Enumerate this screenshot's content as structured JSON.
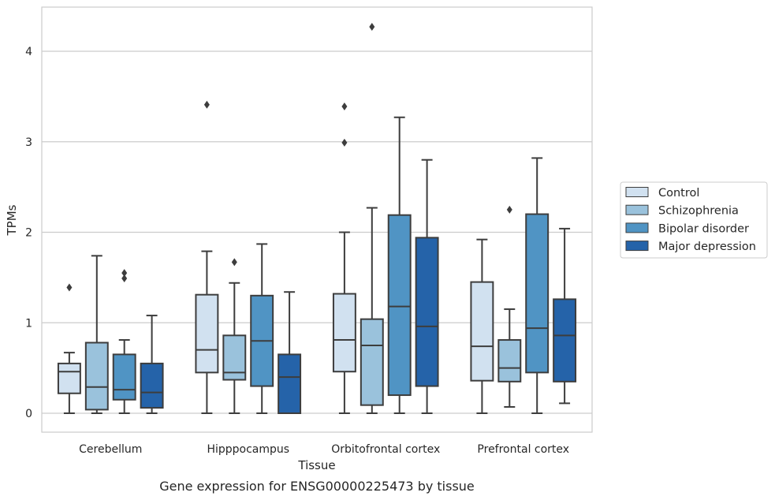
{
  "caption": "Gene expression for ENSG00000225473 by tissue",
  "chart_data": {
    "type": "box",
    "title": "",
    "xlabel": "Tissue",
    "ylabel": "TPMs",
    "ylim": [
      -0.2,
      4.5
    ],
    "yticks": [
      0,
      1,
      2,
      3,
      4
    ],
    "grid": "horizontal",
    "legend_position": "right",
    "categories": [
      "Cerebellum",
      "Hipppocampus",
      "Orbitofrontal cortex",
      "Prefrontal cortex"
    ],
    "series": [
      {
        "name": "Control",
        "color": "#d1e1f0",
        "boxes": [
          {
            "whisker_low": 0.0,
            "q1": 0.22,
            "median": 0.46,
            "q3": 0.55,
            "whisker_high": 0.67,
            "outliers": [
              1.39
            ]
          },
          {
            "whisker_low": 0.0,
            "q1": 0.45,
            "median": 0.7,
            "q3": 1.31,
            "whisker_high": 1.79,
            "outliers": [
              3.41
            ]
          },
          {
            "whisker_low": 0.0,
            "q1": 0.46,
            "median": 0.81,
            "q3": 1.32,
            "whisker_high": 2.0,
            "outliers": [
              2.99,
              3.39
            ]
          },
          {
            "whisker_low": 0.0,
            "q1": 0.36,
            "median": 0.74,
            "q3": 1.45,
            "whisker_high": 1.92,
            "outliers": []
          }
        ]
      },
      {
        "name": "Schizophrenia",
        "color": "#9ac2dc",
        "boxes": [
          {
            "whisker_low": 0.0,
            "q1": 0.04,
            "median": 0.29,
            "q3": 0.78,
            "whisker_high": 1.74,
            "outliers": []
          },
          {
            "whisker_low": 0.0,
            "q1": 0.37,
            "median": 0.45,
            "q3": 0.86,
            "whisker_high": 1.44,
            "outliers": [
              1.67
            ]
          },
          {
            "whisker_low": 0.0,
            "q1": 0.09,
            "median": 0.75,
            "q3": 1.04,
            "whisker_high": 2.27,
            "outliers": [
              4.27
            ]
          },
          {
            "whisker_low": 0.07,
            "q1": 0.35,
            "median": 0.5,
            "q3": 0.81,
            "whisker_high": 1.15,
            "outliers": [
              2.25
            ]
          }
        ]
      },
      {
        "name": "Bipolar disorder",
        "color": "#5094c4",
        "boxes": [
          {
            "whisker_low": 0.0,
            "q1": 0.15,
            "median": 0.26,
            "q3": 0.65,
            "whisker_high": 0.81,
            "outliers": [
              1.49,
              1.55
            ]
          },
          {
            "whisker_low": 0.0,
            "q1": 0.3,
            "median": 0.8,
            "q3": 1.3,
            "whisker_high": 1.87,
            "outliers": []
          },
          {
            "whisker_low": 0.0,
            "q1": 0.2,
            "median": 1.18,
            "q3": 2.19,
            "whisker_high": 3.27,
            "outliers": []
          },
          {
            "whisker_low": 0.0,
            "q1": 0.45,
            "median": 0.94,
            "q3": 2.2,
            "whisker_high": 2.82,
            "outliers": []
          }
        ]
      },
      {
        "name": "Major depression",
        "color": "#2563a9",
        "boxes": [
          {
            "whisker_low": 0.0,
            "q1": 0.06,
            "median": 0.23,
            "q3": 0.55,
            "whisker_high": 1.08,
            "outliers": []
          },
          {
            "whisker_low": 0.0,
            "q1": 0.0,
            "median": 0.4,
            "q3": 0.65,
            "whisker_high": 1.34,
            "outliers": []
          },
          {
            "whisker_low": 0.0,
            "q1": 0.3,
            "median": 0.96,
            "q3": 1.94,
            "whisker_high": 2.8,
            "outliers": []
          },
          {
            "whisker_low": 0.11,
            "q1": 0.35,
            "median": 0.86,
            "q3": 1.26,
            "whisker_high": 2.04,
            "outliers": []
          }
        ]
      }
    ]
  }
}
